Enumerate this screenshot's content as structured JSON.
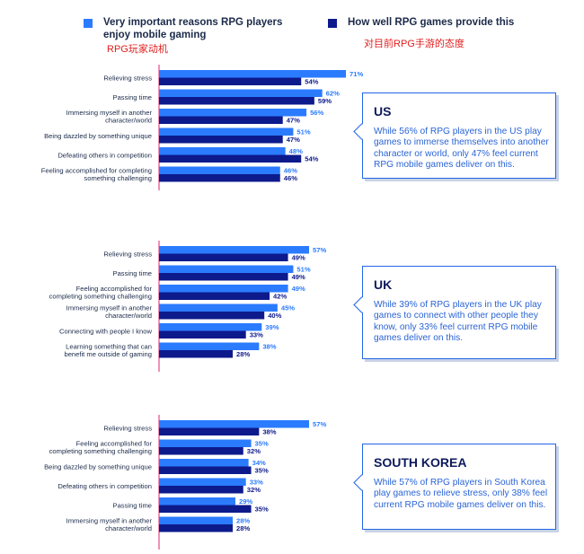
{
  "legend": {
    "important": {
      "label_line1": "Very important reasons RPG players",
      "label_line2": "enjoy mobile gaming",
      "sublabel": "RPG玩家动机",
      "color": "#2b7bff"
    },
    "provide": {
      "label": "How well RPG games provide this",
      "sublabel": "对目前RPG手游的态度",
      "color": "#0d1a8c"
    }
  },
  "colors": {
    "axis": "#e0236f",
    "text": "#1b2a4a",
    "callout_border": "#2166e8",
    "callout_body": "#2a64d6"
  },
  "chart_data": [
    {
      "type": "bar",
      "region": "US",
      "categories": [
        [
          "Relieving stress"
        ],
        [
          "Passing time"
        ],
        [
          "Immersing myself in another",
          "character/world"
        ],
        [
          "Being dazzled by something unique"
        ],
        [
          "Defeating others in competition"
        ],
        [
          "Feeling accomplished for completing",
          "something challenging"
        ]
      ],
      "series": [
        {
          "name": "Very important reasons RPG players enjoy mobile gaming",
          "values": [
            71,
            62,
            56,
            51,
            48,
            46
          ]
        },
        {
          "name": "How well RPG games provide this",
          "values": [
            54,
            59,
            47,
            47,
            54,
            46
          ]
        }
      ],
      "ylim": [
        0,
        100
      ]
    },
    {
      "type": "bar",
      "region": "UK",
      "categories": [
        [
          "Relieving stress"
        ],
        [
          "Passing time"
        ],
        [
          "Feeling accomplished for",
          "completing something challenging"
        ],
        [
          "Immersing myself in another",
          "character/world"
        ],
        [
          "Connecting with people I know"
        ],
        [
          "Learning something that can",
          "benefit me outside of gaming"
        ]
      ],
      "series": [
        {
          "name": "Very important reasons RPG players enjoy mobile gaming",
          "values": [
            57,
            51,
            49,
            45,
            39,
            38
          ]
        },
        {
          "name": "How well RPG games provide this",
          "values": [
            49,
            49,
            42,
            40,
            33,
            28
          ]
        }
      ],
      "ylim": [
        0,
        100
      ]
    },
    {
      "type": "bar",
      "region": "SOUTH KOREA",
      "categories": [
        [
          "Relieving stress"
        ],
        [
          "Feeling accomplished for",
          "completing something challenging"
        ],
        [
          "Being dazzled by something unique"
        ],
        [
          "Defeating others in competition"
        ],
        [
          "Passing time"
        ],
        [
          "Immersing myself in another",
          "character/world"
        ]
      ],
      "series": [
        {
          "name": "Very important reasons RPG players enjoy mobile gaming",
          "values": [
            57,
            35,
            34,
            33,
            29,
            28
          ]
        },
        {
          "name": "How well RPG games provide this",
          "values": [
            38,
            32,
            35,
            32,
            35,
            28
          ]
        }
      ],
      "ylim": [
        0,
        100
      ]
    }
  ],
  "callouts": [
    {
      "title": "US",
      "body": "While 56% of RPG players in the US play games to immerse themselves into another character or world, only 47% feel current RPG mobile games deliver on this."
    },
    {
      "title": "UK",
      "body": "While 39% of RPG players in the UK play games to connect with other people they know, only 33% feel current RPG mobile games deliver on this."
    },
    {
      "title": "SOUTH KOREA",
      "body": "While 57% of RPG players in South Korea play games to relieve stress, only 38% feel current RPG mobile games deliver on this."
    }
  ]
}
